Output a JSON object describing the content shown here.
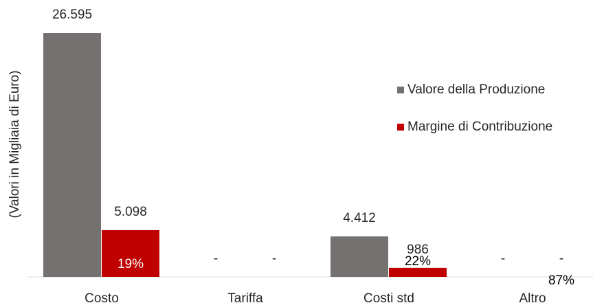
{
  "chart_data": {
    "type": "bar",
    "y_axis_label": "(Valori in Migliaia di Euro)",
    "categories": [
      "Costo",
      "Tariffa",
      "Costi std",
      "Altro"
    ],
    "series": [
      {
        "name": "Valore della Produzione",
        "color": "#767171",
        "values": [
          26595,
          0,
          4412,
          0
        ],
        "value_labels": [
          "26.595",
          "-",
          "4.412",
          "-"
        ]
      },
      {
        "name": "Margine di Contribuzione",
        "color": "#c00000",
        "values": [
          5098,
          0,
          986,
          0
        ],
        "value_labels": [
          "5.098",
          "-",
          "986",
          "-"
        ]
      }
    ],
    "percent_labels": [
      "19%",
      null,
      "22%",
      "87%"
    ],
    "ylim": [
      0,
      27000
    ],
    "legend": "right"
  }
}
